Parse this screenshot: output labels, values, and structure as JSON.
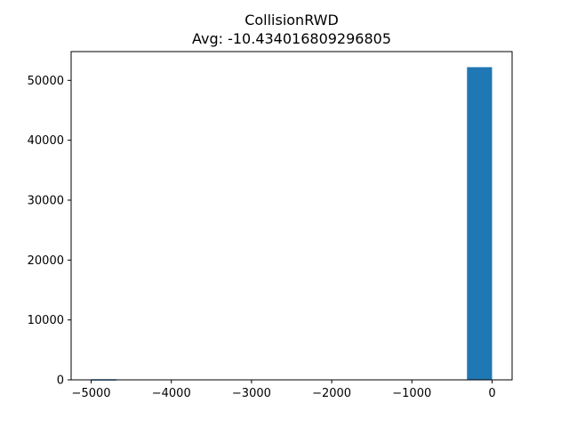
{
  "chart_data": {
    "type": "bar",
    "title": "CollisionRWD",
    "subtitle": "Avg: -10.434016809296805",
    "xlabel": "",
    "ylabel": "",
    "xlim": [
      -5250,
      250
    ],
    "ylim": [
      0,
      54800
    ],
    "xticks": [
      -5000,
      -4000,
      -3000,
      -2000,
      -1000,
      0
    ],
    "xtick_labels": [
      "−5000",
      "−4000",
      "−3000",
      "−2000",
      "−1000",
      "0"
    ],
    "yticks": [
      0,
      10000,
      20000,
      30000,
      40000,
      50000
    ],
    "ytick_labels": [
      "0",
      "10000",
      "20000",
      "30000",
      "40000",
      "50000"
    ],
    "bin_edges": [
      -5000,
      -4687.5,
      -4375,
      -4062.5,
      -3750,
      -3437.5,
      -3125,
      -2812.5,
      -2500,
      -2187.5,
      -1875,
      -1562.5,
      -1250,
      -937.5,
      -625,
      -312.5,
      0
    ],
    "counts": [
      105,
      0,
      0,
      0,
      0,
      0,
      0,
      0,
      0,
      0,
      0,
      0,
      0,
      0,
      0,
      52200
    ],
    "bar_color": "#1f77b4",
    "grid": false,
    "legend": "none"
  }
}
